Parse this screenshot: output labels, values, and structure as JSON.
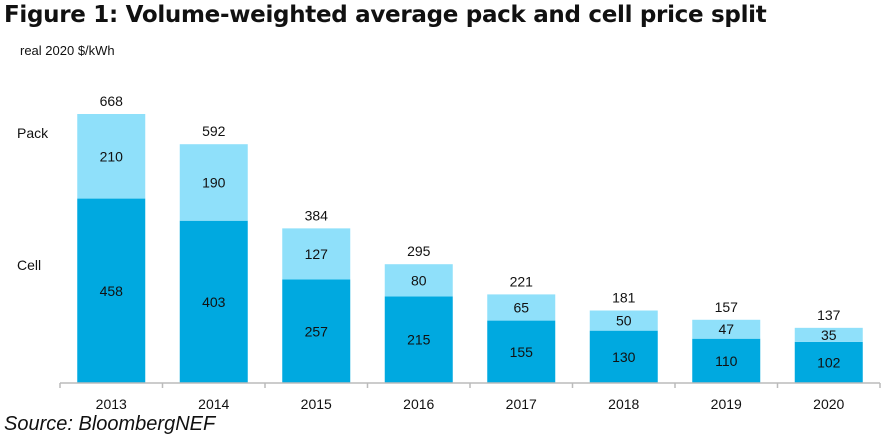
{
  "chart_data": {
    "type": "bar",
    "stacked": true,
    "title": "Figure 1: Volume-weighted average pack and cell price split",
    "ylabel": "real 2020 $/kWh",
    "source": "Source: BloombergNEF",
    "categories": [
      "2013",
      "2014",
      "2015",
      "2016",
      "2017",
      "2018",
      "2019",
      "2020"
    ],
    "series": [
      {
        "name": "Cell",
        "color": "#00a9e0",
        "values": [
          458,
          403,
          257,
          215,
          155,
          130,
          110,
          102
        ]
      },
      {
        "name": "Pack",
        "color": "#8fe0fa",
        "values": [
          210,
          190,
          127,
          80,
          65,
          50,
          47,
          35
        ]
      }
    ],
    "totals": [
      668,
      592,
      384,
      295,
      221,
      181,
      157,
      137
    ],
    "ylim": [
      0,
      700
    ],
    "grid": false,
    "legend": "left"
  }
}
